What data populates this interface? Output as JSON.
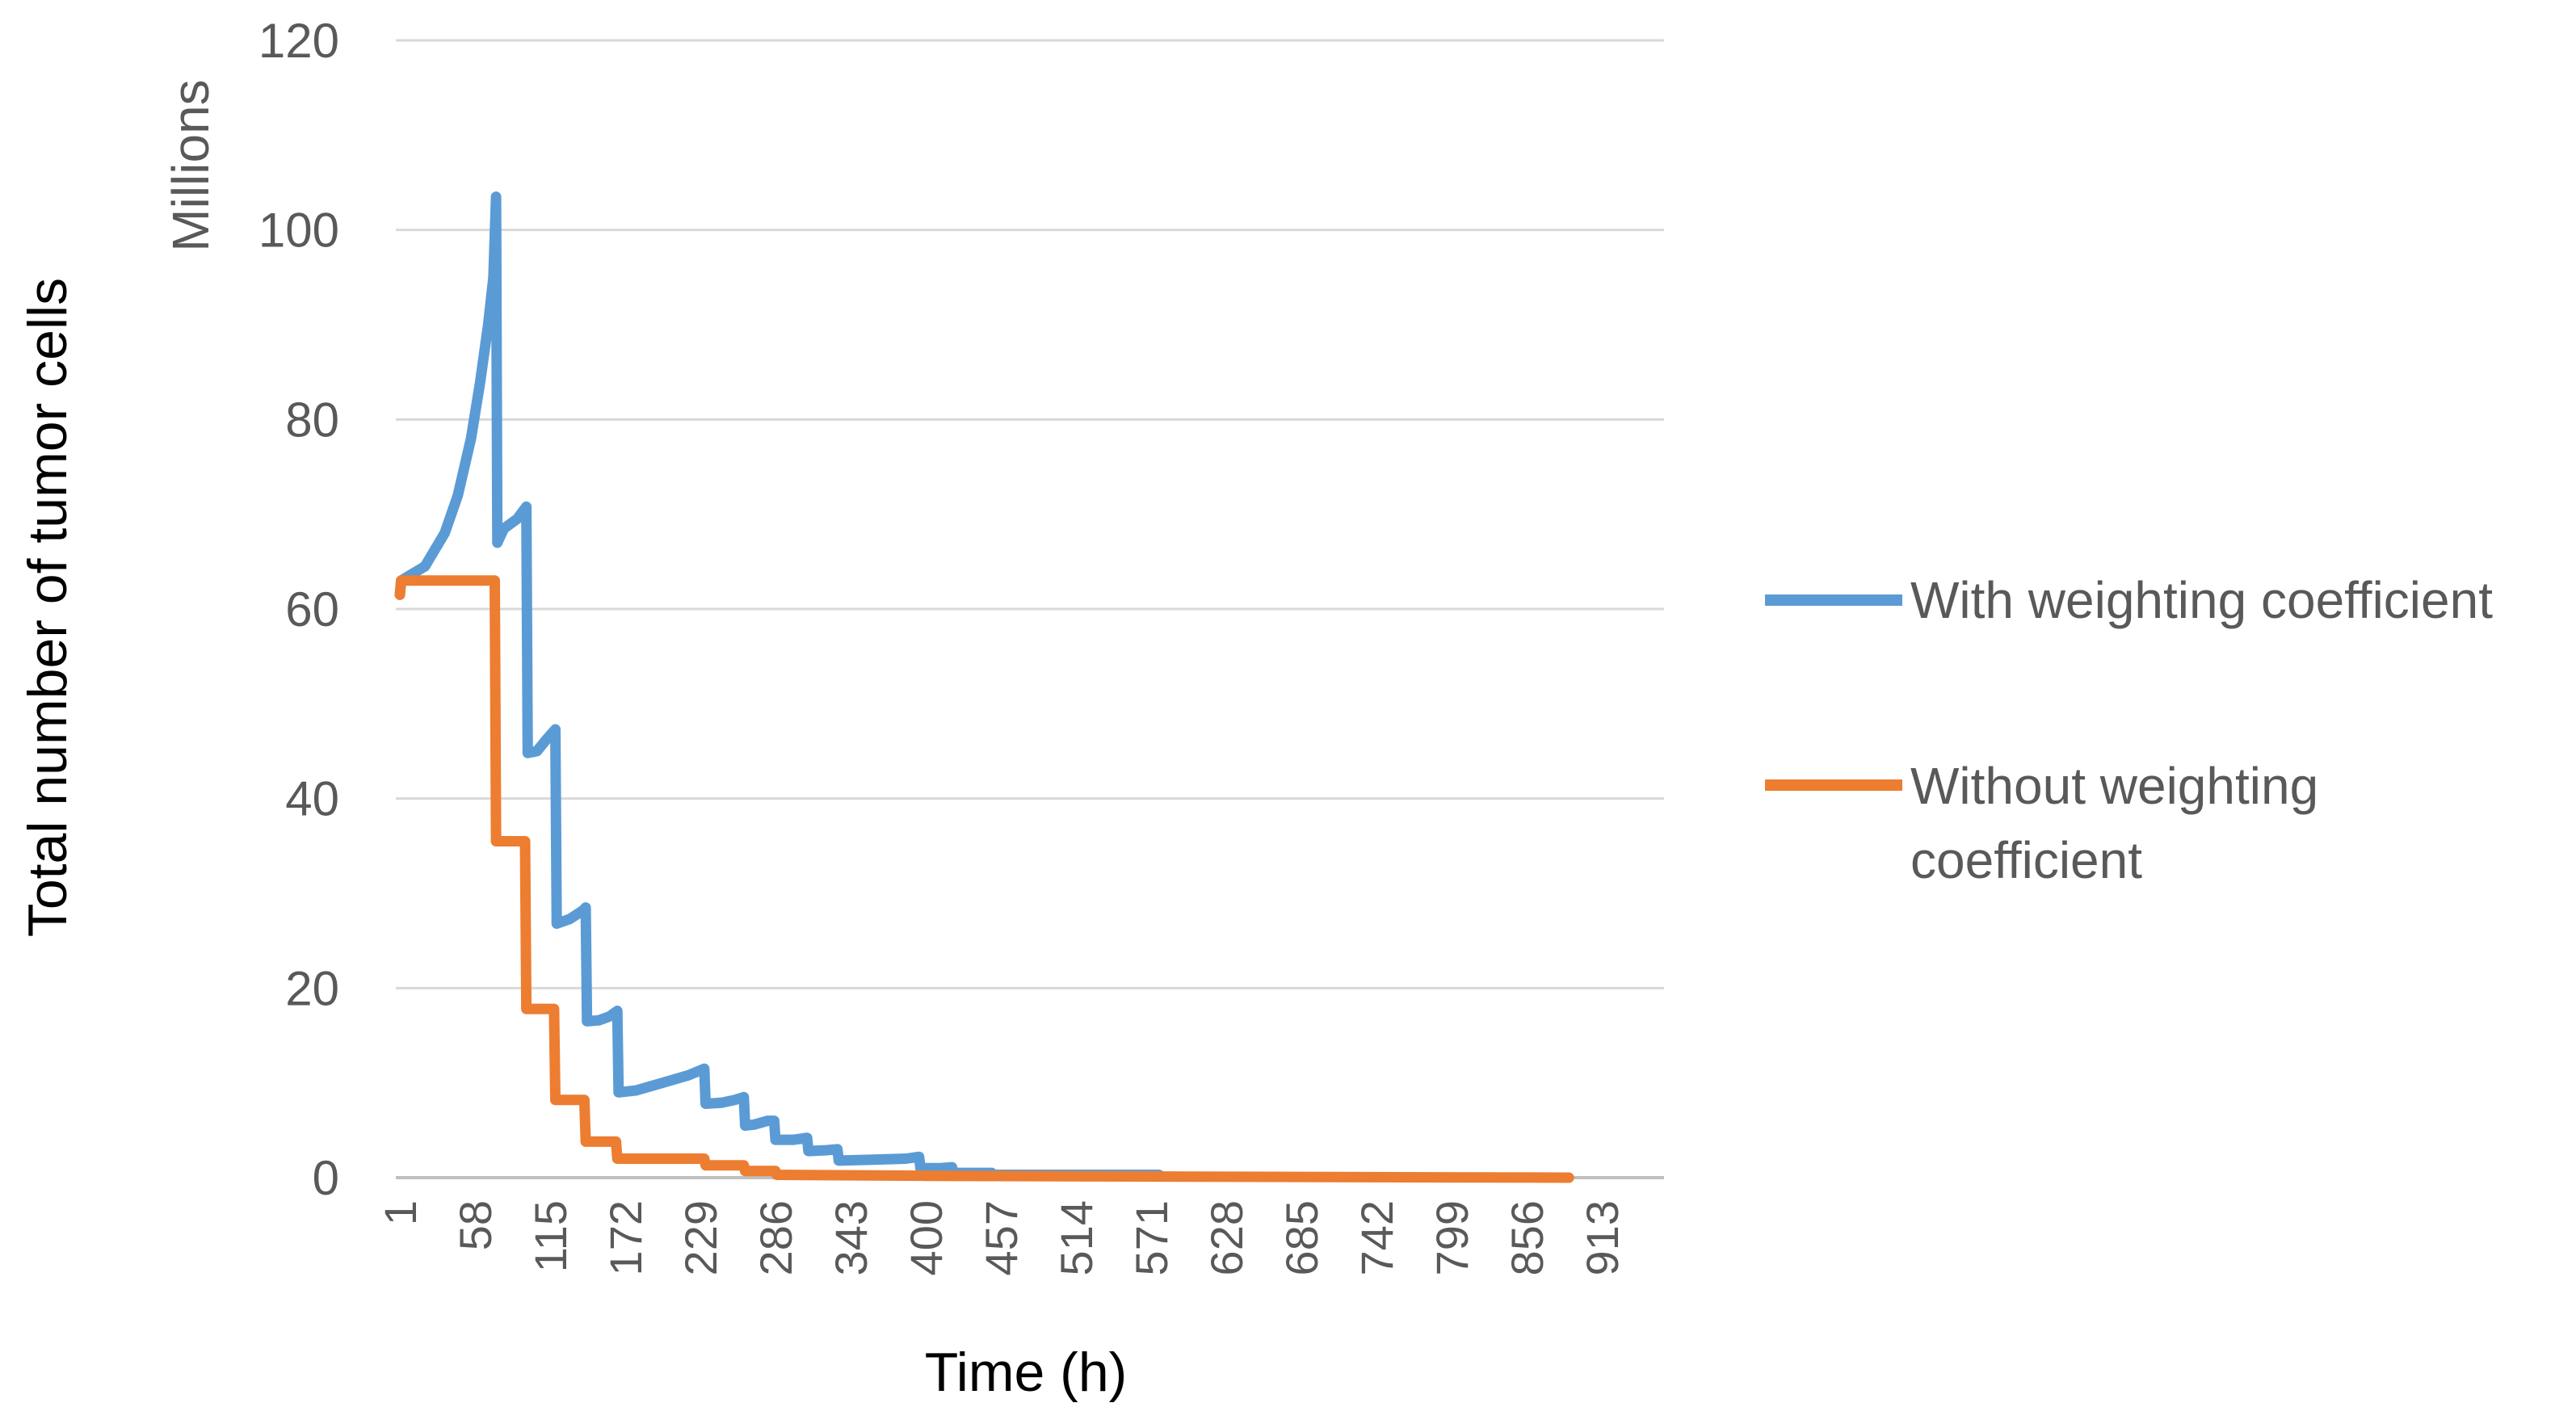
{
  "chart_data": {
    "type": "line",
    "xlabel": "Time (h)",
    "ylabel": "Total number of tumor cells",
    "y_units": "Millions",
    "ylim": [
      0,
      120
    ],
    "yticks": [
      "0",
      "20",
      "40",
      "60",
      "80",
      "100",
      "120"
    ],
    "xlim": [
      1,
      950
    ],
    "xticks": [
      "1",
      "58",
      "115",
      "172",
      "229",
      "286",
      "343",
      "400",
      "457",
      "514",
      "571",
      "628",
      "685",
      "742",
      "799",
      "856",
      "913"
    ],
    "grid": true,
    "legend_position": "right",
    "series": [
      {
        "name": "With weighting coefficient",
        "color": "#5b9bd5",
        "points": [
          [
            1,
            61.5
          ],
          [
            2,
            63.0
          ],
          [
            20,
            64.5
          ],
          [
            35,
            68.0
          ],
          [
            45,
            72.0
          ],
          [
            55,
            78.0
          ],
          [
            62,
            84.0
          ],
          [
            68,
            90.0
          ],
          [
            72,
            95.0
          ],
          [
            74,
            103.5
          ],
          [
            75,
            67.0
          ],
          [
            80,
            68.5
          ],
          [
            90,
            69.5
          ],
          [
            97,
            70.8
          ],
          [
            98,
            44.8
          ],
          [
            105,
            45.0
          ],
          [
            112,
            46.2
          ],
          [
            119,
            47.3
          ],
          [
            120,
            26.8
          ],
          [
            130,
            27.3
          ],
          [
            140,
            28.2
          ],
          [
            142,
            28.5
          ],
          [
            143,
            16.5
          ],
          [
            152,
            16.6
          ],
          [
            160,
            17.0
          ],
          [
            166,
            17.6
          ],
          [
            167,
            9.0
          ],
          [
            180,
            9.2
          ],
          [
            200,
            10.0
          ],
          [
            220,
            10.8
          ],
          [
            232,
            11.5
          ],
          [
            233,
            7.8
          ],
          [
            245,
            7.9
          ],
          [
            255,
            8.2
          ],
          [
            262,
            8.5
          ],
          [
            263,
            5.5
          ],
          [
            270,
            5.6
          ],
          [
            280,
            6.0
          ],
          [
            285,
            6.0
          ],
          [
            286,
            4.0
          ],
          [
            300,
            4.0
          ],
          [
            310,
            4.2
          ],
          [
            311,
            2.8
          ],
          [
            325,
            2.9
          ],
          [
            333,
            3.0
          ],
          [
            334,
            1.8
          ],
          [
            360,
            1.9
          ],
          [
            385,
            2.0
          ],
          [
            395,
            2.2
          ],
          [
            396,
            1.0
          ],
          [
            410,
            1.0
          ],
          [
            420,
            1.1
          ],
          [
            421,
            0.5
          ],
          [
            450,
            0.5
          ],
          [
            451,
            0.3
          ],
          [
            520,
            0.3
          ],
          [
            577,
            0.3
          ]
        ]
      },
      {
        "name": "Without weighting coefficient",
        "color": "#ed7d31",
        "points": [
          [
            1,
            61.5
          ],
          [
            2,
            63.0
          ],
          [
            73,
            63.0
          ],
          [
            74,
            35.5
          ],
          [
            96,
            35.5
          ],
          [
            97,
            17.8
          ],
          [
            118,
            17.8
          ],
          [
            119,
            8.2
          ],
          [
            141,
            8.2
          ],
          [
            142,
            3.8
          ],
          [
            165,
            3.8
          ],
          [
            166,
            2.0
          ],
          [
            232,
            2.0
          ],
          [
            233,
            1.3
          ],
          [
            262,
            1.3
          ],
          [
            263,
            0.7
          ],
          [
            286,
            0.7
          ],
          [
            287,
            0.3
          ],
          [
            400,
            0.2
          ],
          [
            600,
            0.1
          ],
          [
            888,
            0.0
          ]
        ]
      }
    ]
  }
}
